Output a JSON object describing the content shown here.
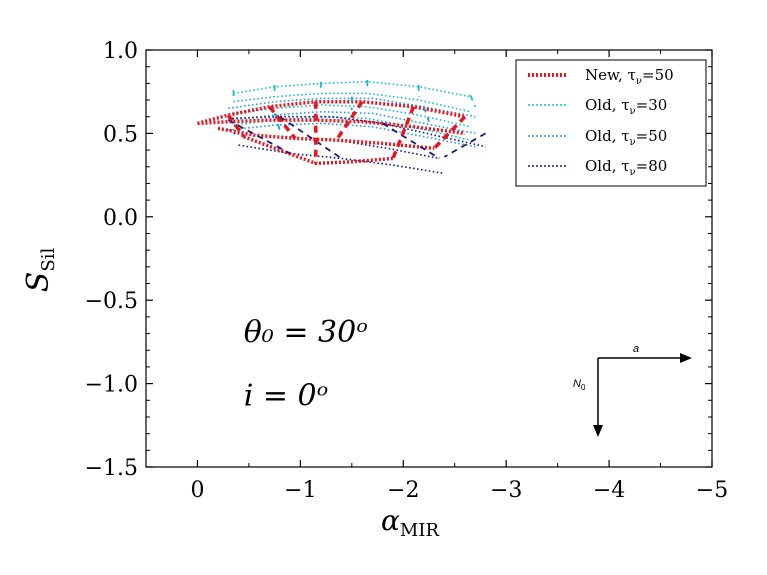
{
  "chart_data": {
    "type": "line",
    "xlabel": "α",
    "xlabel_sub": "MIR",
    "ylabel": "S",
    "ylabel_sub": "Sil",
    "xlim": [
      0.5,
      -5.0
    ],
    "ylim": [
      -1.5,
      1.0
    ],
    "xticks": [
      {
        "v": 0,
        "label": "0"
      },
      {
        "v": -1,
        "label": "−1"
      },
      {
        "v": -2,
        "label": "−2"
      },
      {
        "v": -3,
        "label": "−3"
      },
      {
        "v": -4,
        "label": "−4"
      },
      {
        "v": -5,
        "label": "−5"
      }
    ],
    "yticks": [
      {
        "v": 1.0,
        "label": "1.0"
      },
      {
        "v": 0.5,
        "label": "0.5"
      },
      {
        "v": 0.0,
        "label": "0.0"
      },
      {
        "v": -0.5,
        "label": "−0.5"
      },
      {
        "v": -1.0,
        "label": "−1.0"
      },
      {
        "v": -1.5,
        "label": "−1.5"
      }
    ],
    "annotations": [
      {
        "name": "theta-annotation",
        "text": "θ₀ = 30ᵒ",
        "x": -0.45,
        "y": -0.75
      },
      {
        "name": "inclination-annotation",
        "text": "i = 0ᵒ",
        "x": -0.45,
        "y": -1.13
      }
    ],
    "legend": {
      "placement": "top-right",
      "entries": [
        {
          "label": "New, τ",
          "sub": "ν",
          "suffix": "=50"
        },
        {
          "label": "Old, τ",
          "sub": "ν",
          "suffix": "=30"
        },
        {
          "label": "Old, τ",
          "sub": "ν",
          "suffix": "=50"
        },
        {
          "label": "Old, τ",
          "sub": "ν",
          "suffix": "=80"
        }
      ]
    },
    "inset": {
      "x_label": "a",
      "y_label": "N",
      "y_label_sub": "0"
    },
    "series": [
      {
        "name": "Old, τν=30",
        "color": "#17becf",
        "lines": [
          [
            [
              -0.35,
              0.74
            ],
            [
              -0.75,
              0.78
            ],
            [
              -1.2,
              0.8
            ],
            [
              -1.65,
              0.81
            ],
            [
              -2.15,
              0.78
            ],
            [
              -2.65,
              0.72
            ]
          ],
          [
            [
              -0.35,
              0.69
            ],
            [
              -0.75,
              0.72
            ],
            [
              -1.2,
              0.74
            ],
            [
              -1.65,
              0.74
            ],
            [
              -2.15,
              0.7
            ],
            [
              -2.65,
              0.63
            ]
          ],
          [
            [
              -0.35,
              0.62
            ],
            [
              -0.75,
              0.65
            ],
            [
              -1.2,
              0.67
            ],
            [
              -1.65,
              0.66
            ],
            [
              -2.15,
              0.61
            ],
            [
              -2.65,
              0.54
            ]
          ],
          [
            [
              -0.35,
              0.55
            ],
            [
              -0.75,
              0.58
            ],
            [
              -1.2,
              0.6
            ],
            [
              -1.65,
              0.59
            ],
            [
              -2.15,
              0.53
            ],
            [
              -2.65,
              0.46
            ]
          ]
        ]
      },
      {
        "name": "Old, τν=50",
        "color": "#1f9fd9",
        "lines": [
          [
            [
              -0.3,
              0.65
            ],
            [
              -0.75,
              0.69
            ],
            [
              -1.2,
              0.71
            ],
            [
              -1.7,
              0.71
            ],
            [
              -2.2,
              0.66
            ],
            [
              -2.7,
              0.6
            ]
          ],
          [
            [
              -0.3,
              0.58
            ],
            [
              -0.75,
              0.61
            ],
            [
              -1.2,
              0.63
            ],
            [
              -1.7,
              0.62
            ],
            [
              -2.2,
              0.56
            ],
            [
              -2.7,
              0.5
            ]
          ],
          [
            [
              -0.3,
              0.52
            ],
            [
              -0.75,
              0.55
            ],
            [
              -1.2,
              0.56
            ],
            [
              -1.7,
              0.54
            ],
            [
              -2.2,
              0.48
            ],
            [
              -2.7,
              0.42
            ]
          ]
        ]
      },
      {
        "name": "Old, τν=80",
        "color": "#1a1a7a",
        "lines": [
          [
            [
              -0.3,
              0.59
            ],
            [
              -0.8,
              0.6
            ],
            [
              -1.3,
              0.6
            ],
            [
              -1.8,
              0.56
            ],
            [
              -2.3,
              0.49
            ],
            [
              -2.8,
              0.42
            ]
          ],
          [
            [
              -0.35,
              0.5
            ],
            [
              -0.85,
              0.48
            ],
            [
              -1.35,
              0.46
            ],
            [
              -1.85,
              0.41
            ],
            [
              -2.35,
              0.35
            ]
          ],
          [
            [
              -0.4,
              0.43
            ],
            [
              -0.9,
              0.38
            ],
            [
              -1.4,
              0.35
            ],
            [
              -1.9,
              0.31
            ],
            [
              -2.4,
              0.26
            ]
          ]
        ]
      },
      {
        "name": "New, τν=50",
        "color": "#e8141e",
        "lines": [
          [
            [
              0.0,
              0.56
            ],
            [
              -0.3,
              0.61
            ],
            [
              -0.7,
              0.66
            ],
            [
              -1.15,
              0.69
            ],
            [
              -1.6,
              0.69
            ],
            [
              -2.1,
              0.66
            ],
            [
              -2.6,
              0.6
            ]
          ],
          [
            [
              0.0,
              0.56
            ],
            [
              -0.3,
              0.57
            ],
            [
              -0.7,
              0.58
            ],
            [
              -1.15,
              0.58
            ],
            [
              -1.6,
              0.57
            ],
            [
              -2.1,
              0.54
            ],
            [
              -2.6,
              0.5
            ]
          ],
          [
            [
              -0.2,
              0.53
            ],
            [
              -0.55,
              0.49
            ],
            [
              -0.95,
              0.47
            ],
            [
              -1.35,
              0.46
            ],
            [
              -1.8,
              0.44
            ],
            [
              -2.3,
              0.41
            ]
          ],
          [
            [
              -0.45,
              0.48
            ],
            [
              -0.8,
              0.4
            ],
            [
              -1.15,
              0.32
            ],
            [
              -1.5,
              0.33
            ],
            [
              -1.9,
              0.35
            ]
          ]
        ]
      }
    ],
    "connectors": [
      {
        "color": "#17becf",
        "points": [
          [
            -0.35,
            0.76
          ],
          [
            -0.35,
            0.72
          ]
        ]
      },
      {
        "color": "#17becf",
        "points": [
          [
            -0.75,
            0.79
          ],
          [
            -0.75,
            0.74
          ]
        ]
      },
      {
        "color": "#17becf",
        "points": [
          [
            -1.2,
            0.81
          ],
          [
            -1.2,
            0.76
          ]
        ]
      },
      {
        "color": "#17becf",
        "points": [
          [
            -1.65,
            0.82
          ],
          [
            -1.65,
            0.76
          ]
        ]
      },
      {
        "color": "#17becf",
        "points": [
          [
            -2.15,
            0.79
          ],
          [
            -2.15,
            0.72
          ]
        ]
      },
      {
        "color": "#17becf",
        "points": [
          [
            -2.65,
            0.73
          ],
          [
            -2.7,
            0.66
          ]
        ]
      },
      {
        "color": "#1f9fd9",
        "points": [
          [
            -0.75,
            0.62
          ],
          [
            -0.8,
            0.52
          ]
        ]
      },
      {
        "color": "#1f9fd9",
        "points": [
          [
            -1.5,
            0.72
          ],
          [
            -1.5,
            0.64
          ]
        ]
      },
      {
        "color": "#1f9fd9",
        "points": [
          [
            -2.2,
            0.66
          ],
          [
            -2.25,
            0.57
          ]
        ]
      },
      {
        "color": "#1a1a7a",
        "points": [
          [
            -0.3,
            0.58
          ],
          [
            -0.9,
            0.38
          ]
        ]
      },
      {
        "color": "#1a1a7a",
        "points": [
          [
            -0.8,
            0.6
          ],
          [
            -1.4,
            0.35
          ]
        ]
      },
      {
        "color": "#1a1a7a",
        "points": [
          [
            -1.8,
            0.56
          ],
          [
            -2.35,
            0.35
          ]
        ]
      },
      {
        "color": "#1a1a7a",
        "points": [
          [
            -2.8,
            0.5
          ],
          [
            -2.4,
            0.36
          ]
        ]
      },
      {
        "color": "#e8141e",
        "points": [
          [
            -0.3,
            0.61
          ],
          [
            -0.45,
            0.48
          ]
        ]
      },
      {
        "color": "#e8141e",
        "points": [
          [
            -0.7,
            0.66
          ],
          [
            -0.95,
            0.47
          ]
        ]
      },
      {
        "color": "#e8141e",
        "points": [
          [
            -1.15,
            0.69
          ],
          [
            -1.15,
            0.32
          ]
        ]
      },
      {
        "color": "#e8141e",
        "points": [
          [
            -1.6,
            0.69
          ],
          [
            -1.35,
            0.46
          ]
        ]
      },
      {
        "color": "#e8141e",
        "points": [
          [
            -2.1,
            0.66
          ],
          [
            -1.9,
            0.35
          ]
        ]
      },
      {
        "color": "#e8141e",
        "points": [
          [
            -2.6,
            0.6
          ],
          [
            -2.3,
            0.41
          ]
        ]
      }
    ]
  }
}
